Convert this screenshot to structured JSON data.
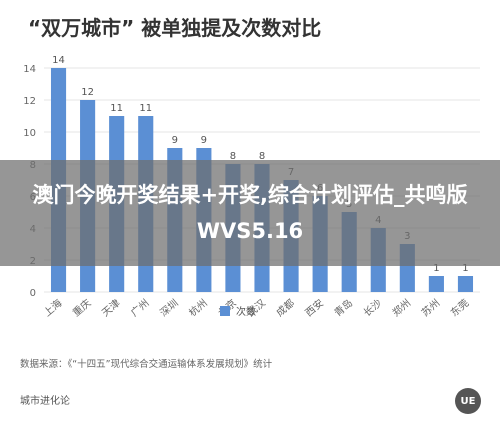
{
  "title": "“双万城市” 被单独提及次数对比",
  "overlay_text": "澳门今晚开奖结果+开奖,综合计划评估_共鸣版WVS5.16",
  "source": "数据来源：《“十四五”现代综合交通运输体系发展规划》统计",
  "brand": "城市进化论",
  "logo_text": "UE",
  "colors": {
    "bar": "#5b8fd4",
    "grid": "#e6e6e6",
    "axis_text": "#666666"
  },
  "chart_data": {
    "type": "bar",
    "title": "“双万城市” 被单独提及次数对比",
    "categories": [
      "上海",
      "重庆",
      "天津",
      "广州",
      "深圳",
      "杭州",
      "北京",
      "武汉",
      "成都",
      "西安",
      "青岛",
      "长沙",
      "郑州",
      "苏州",
      "东莞"
    ],
    "series": [
      {
        "name": "次数",
        "values": [
          14,
          12,
          11,
          11,
          9,
          9,
          8,
          8,
          7,
          6,
          5,
          4,
          3,
          1,
          1
        ]
      }
    ],
    "ylim": [
      0,
      14
    ],
    "yticks": [
      0,
      2,
      4,
      6,
      8,
      10,
      12,
      14
    ],
    "grid": true,
    "legend": "bottom-center",
    "data_labels": true
  }
}
